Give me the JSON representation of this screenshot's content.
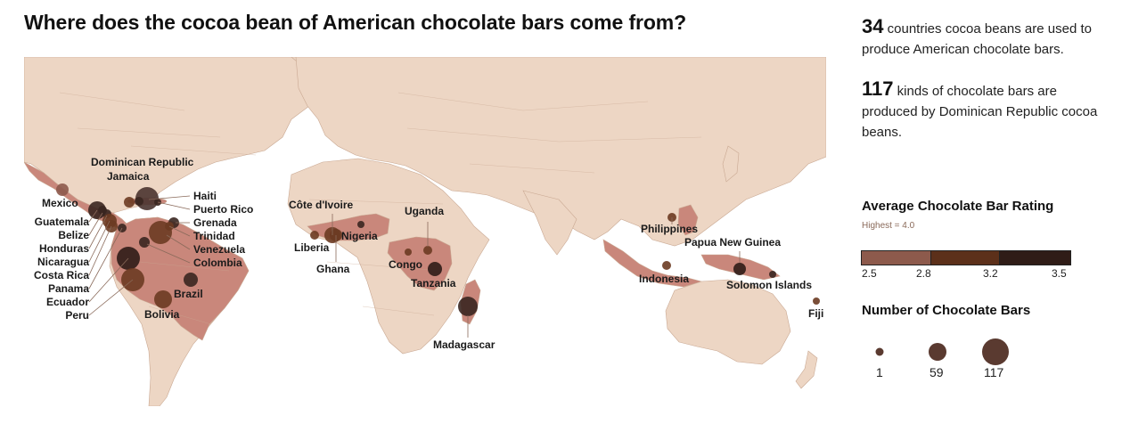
{
  "title": "Where does the cocoa bean of American chocolate bars come from?",
  "stats": [
    {
      "number": "34",
      "text": "countries cocoa beans are used to produce American chocolate bars."
    },
    {
      "number": "117",
      "text": "kinds of chocolate bars are produced by Dominican Republic cocoa beans."
    }
  ],
  "rating_legend": {
    "title": "Average Chocolate Bar Rating",
    "subtitle": "Highest = 4.0",
    "ticks": [
      "2.5",
      "2.8",
      "3.2",
      "3.5"
    ],
    "colors": [
      "#8d5a4c",
      "#5c301a",
      "#2f1c17"
    ]
  },
  "size_legend": {
    "title": "Number of Chocolate Bars",
    "values": [
      "1",
      "59",
      "117"
    ]
  },
  "colors": {
    "land": "#edd6c4",
    "producer": "#c9877b",
    "border": "#c9a892",
    "bubble": "#5a3a30"
  },
  "countries": [
    {
      "name": "Dominican Republic"
    },
    {
      "name": "Jamaica"
    },
    {
      "name": "Haiti"
    },
    {
      "name": "Puerto Rico"
    },
    {
      "name": "Grenada"
    },
    {
      "name": "Trinidad"
    },
    {
      "name": "Venezuela"
    },
    {
      "name": "Colombia"
    },
    {
      "name": "Mexico"
    },
    {
      "name": "Guatemala"
    },
    {
      "name": "Belize"
    },
    {
      "name": "Honduras"
    },
    {
      "name": "Nicaragua"
    },
    {
      "name": "Costa Rica"
    },
    {
      "name": "Panama"
    },
    {
      "name": "Ecuador"
    },
    {
      "name": "Peru"
    },
    {
      "name": "Brazil"
    },
    {
      "name": "Bolivia"
    },
    {
      "name": "Côte d'Ivoire"
    },
    {
      "name": "Liberia"
    },
    {
      "name": "Ghana"
    },
    {
      "name": "Nigeria"
    },
    {
      "name": "Uganda"
    },
    {
      "name": "Congo"
    },
    {
      "name": "Tanzania"
    },
    {
      "name": "Madagascar"
    },
    {
      "name": "Philippines"
    },
    {
      "name": "Papua New Guinea"
    },
    {
      "name": "Indonesia"
    },
    {
      "name": "Solomon Islands"
    },
    {
      "name": "Fiji"
    }
  ]
}
